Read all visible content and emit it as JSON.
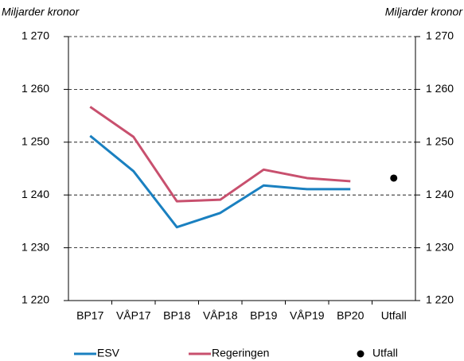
{
  "chart_data": {
    "type": "line",
    "y_label": "Miljarder kronor",
    "y2_label": "Miljarder kronor",
    "categories": [
      "BP17",
      "VÅP17",
      "BP18",
      "VÅP18",
      "BP19",
      "VÅP19",
      "BP20",
      "Utfall"
    ],
    "series": [
      {
        "name": "ESV",
        "color": "#1a80c0",
        "values": [
          1251.2,
          1244.5,
          1233.9,
          1236.6,
          1241.8,
          1241.1,
          1241.1,
          null
        ]
      },
      {
        "name": "Regeringen",
        "color": "#c8506e",
        "values": [
          1256.7,
          1251.0,
          1238.8,
          1239.1,
          1244.8,
          1243.2,
          1242.6,
          null
        ]
      },
      {
        "name": "Utfall",
        "color": "#000000",
        "marker": "circle",
        "values": [
          null,
          null,
          null,
          null,
          null,
          null,
          null,
          1243.2
        ]
      }
    ],
    "ylim": [
      1220,
      1270
    ],
    "yticks": [
      {
        "value": 1220,
        "label": "1 220"
      },
      {
        "value": 1230,
        "label": "1 230"
      },
      {
        "value": 1240,
        "label": "1 240"
      },
      {
        "value": 1250,
        "label": "1 250"
      },
      {
        "value": 1260,
        "label": "1 260"
      },
      {
        "value": 1270,
        "label": "1 270"
      }
    ],
    "y2lim": [
      1220,
      1270
    ],
    "y2ticks": [
      {
        "value": 1220,
        "label": "1 220"
      },
      {
        "value": 1230,
        "label": "1 230"
      },
      {
        "value": 1240,
        "label": "1 240"
      },
      {
        "value": 1250,
        "label": "1 250"
      },
      {
        "value": 1260,
        "label": "1 260"
      },
      {
        "value": 1270,
        "label": "1 270"
      }
    ],
    "grid": true,
    "legend": "bottom"
  }
}
